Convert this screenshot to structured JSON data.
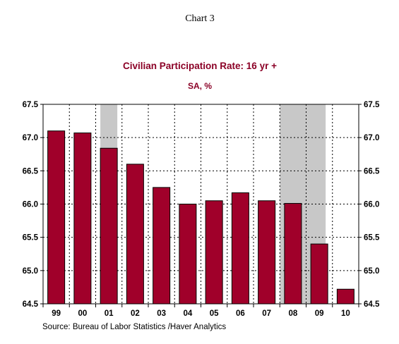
{
  "header": "Chart 3",
  "source": "Source:  Bureau of Labor Statistics /Haver Analytics",
  "colors": {
    "bar_fill": "#a0002a",
    "bar_stroke": "#000000",
    "recession_shade": "#c8c8c8",
    "title_color": "#8b0026",
    "grid": "#000000"
  },
  "chart_data": {
    "type": "bar",
    "title": "Civilian Participation Rate: 16 yr +",
    "subtitle": "SA, %",
    "categories": [
      "99",
      "00",
      "01",
      "02",
      "03",
      "04",
      "05",
      "06",
      "07",
      "08",
      "09",
      "10"
    ],
    "values": [
      67.1,
      67.07,
      66.84,
      66.6,
      66.25,
      66.0,
      66.05,
      66.17,
      66.05,
      66.01,
      65.4,
      64.72
    ],
    "ylim": [
      64.5,
      67.5
    ],
    "yticks": [
      "64.5",
      "65.0",
      "65.5",
      "66.0",
      "66.5",
      "67.0",
      "67.5"
    ],
    "ytick_values": [
      64.5,
      65.0,
      65.5,
      66.0,
      66.5,
      67.0,
      67.5
    ],
    "y_axis_both_sides": true,
    "grid": true,
    "recession_shading": [
      {
        "start_index": 2,
        "end_index": 2,
        "coverage": "partial"
      },
      {
        "start_index": 9,
        "end_index": 10,
        "coverage": "partial"
      }
    ]
  }
}
